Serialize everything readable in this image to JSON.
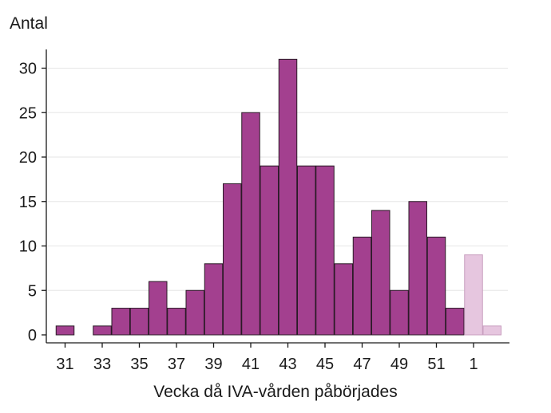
{
  "chart_data": {
    "type": "bar",
    "ylabel": "Antal",
    "xlabel": "Vecka då IVA-vården påbörjades",
    "ylim": [
      0,
      32
    ],
    "yticks": [
      0,
      5,
      10,
      15,
      20,
      25,
      30
    ],
    "grid": true,
    "categories": [
      "31",
      "32",
      "33",
      "34",
      "35",
      "36",
      "37",
      "38",
      "39",
      "40",
      "41",
      "42",
      "43",
      "44",
      "45",
      "46",
      "47",
      "48",
      "49",
      "50",
      "51",
      "52",
      "1",
      "2"
    ],
    "xtick_labels": [
      "31",
      "33",
      "35",
      "37",
      "39",
      "41",
      "43",
      "45",
      "47",
      "49",
      "51",
      "1"
    ],
    "values": [
      1,
      0,
      1,
      3,
      3,
      6,
      3,
      5,
      8,
      17,
      25,
      19,
      31,
      19,
      19,
      8,
      11,
      14,
      5,
      15,
      11,
      3,
      9,
      1
    ],
    "preliminary_from_index": 22,
    "colors": {
      "bar": "#a3408f",
      "bar_preliminary": "#e6c6df",
      "bar_stroke": "#2a1a26",
      "bar_stroke_preliminary": "#c89fbf",
      "grid": "#e6e6e6",
      "axis": "#1a1a1a"
    }
  }
}
